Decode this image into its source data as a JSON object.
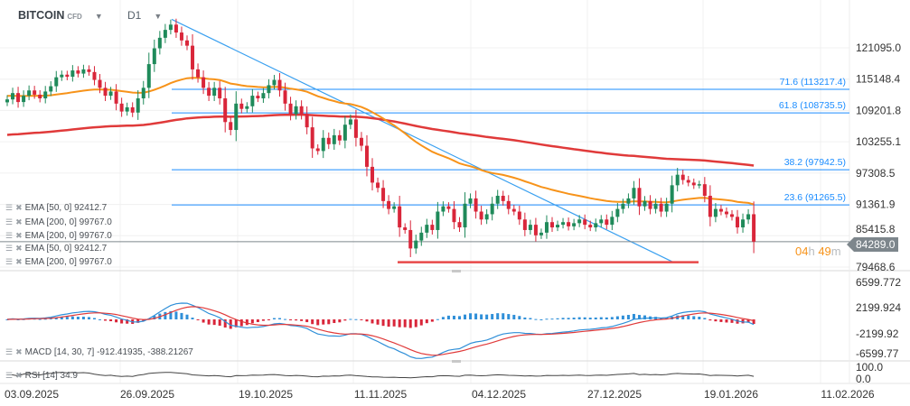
{
  "header": {
    "symbol": "BITCOIN",
    "instrument_type": "CFD",
    "timeframe": "D1"
  },
  "legend": {
    "ema_rows": [
      "EMA [50, 0] 92412.7",
      "EMA [200, 0] 99767.0",
      "EMA [200, 0] 99767.0",
      "EMA [50, 0] 92412.7",
      "EMA [200, 0] 99767.0"
    ],
    "macd": "MACD [14, 30, 7] -912.41935,  -388.21267",
    "rsi": "RSI [14] 34.9"
  },
  "last_price": {
    "value": "84289.0",
    "countdown_h": "04",
    "countdown_m": "49",
    "h_unit": "h",
    "m_unit": "m"
  },
  "colors": {
    "up": "#1f8a5a",
    "down": "#d9263a",
    "ema50": "#f7931a",
    "ema200": "#e03a3a",
    "fib": "#1a8cff",
    "trend": "#3aa0f0",
    "support": "#e84848",
    "macd_line": "#2f8fd8",
    "signal_line": "#e03a3a",
    "rsi": "#444444"
  },
  "chart_data": {
    "type": "candlestick",
    "title": "",
    "x_ticks": [
      "03.09.2025",
      "26.09.2025",
      "19.10.2025",
      "11.11.2025",
      "04.12.2025",
      "27.12.2025",
      "19.01.2026",
      "11.02.2026"
    ],
    "y_ticks": [
      "121095.0",
      "115148.4",
      "109201.8",
      "103255.1",
      "97308.5",
      "91361.9",
      "85415.8",
      "79468.6"
    ],
    "ylim": [
      79468.6,
      121095.0
    ],
    "closes": [
      111300,
      112500,
      110800,
      112000,
      113000,
      112200,
      111500,
      112800,
      113800,
      115500,
      116000,
      115600,
      116800,
      116200,
      117000,
      116500,
      115000,
      113500,
      112000,
      112800,
      110500,
      109000,
      109800,
      108800,
      111500,
      113500,
      118000,
      121000,
      123000,
      124500,
      125500,
      124000,
      122500,
      121500,
      117000,
      115500,
      113500,
      112000,
      113500,
      111500,
      107000,
      105500,
      110500,
      109500,
      110000,
      112000,
      111500,
      112500,
      114000,
      115000,
      113000,
      110500,
      108500,
      110000,
      108500,
      106000,
      102000,
      101500,
      104000,
      102800,
      104500,
      103500,
      106500,
      107500,
      104000,
      102500,
      98500,
      95500,
      94500,
      92000,
      90500,
      91000,
      87000,
      86500,
      83000,
      84500,
      86000,
      87500,
      86500,
      90000,
      91000,
      90500,
      88000,
      87000,
      91500,
      92500,
      90000,
      88500,
      89500,
      91500,
      93000,
      92000,
      90500,
      90000,
      88500,
      86500,
      87500,
      85500,
      86000,
      88000,
      87000,
      87500,
      88000,
      87200,
      87800,
      88500,
      87500,
      87000,
      87800,
      88500,
      87500,
      89000,
      90500,
      91500,
      92500,
      94500,
      91000,
      92000,
      90500,
      91500,
      90000,
      91500,
      95000,
      97000,
      96000,
      95500,
      95000,
      95200,
      93000,
      89000,
      90500,
      90000,
      89500,
      89000,
      87000,
      88500,
      89500,
      84289
    ],
    "fib_levels": [
      {
        "label": "71.6 (113217.4)",
        "price": 113217.4
      },
      {
        "label": "61.8 (108735.5)",
        "price": 108735.5
      },
      {
        "label": "38.2 (97942.5)",
        "price": 97942.5
      },
      {
        "label": "23.6 (91265.5)",
        "price": 91265.5
      }
    ],
    "support_price": 80400,
    "trendline": {
      "from_price": 126500,
      "to_price": 80400
    },
    "macd": {
      "y_ticks": [
        "6599.772",
        "2199.924",
        "-2199.92",
        "-6599.77"
      ],
      "ylim": [
        -6599.77,
        6599.772
      ]
    },
    "rsi": {
      "y_ticks": [
        "100.0",
        "0.0"
      ],
      "ylim": [
        0,
        100
      ]
    }
  }
}
